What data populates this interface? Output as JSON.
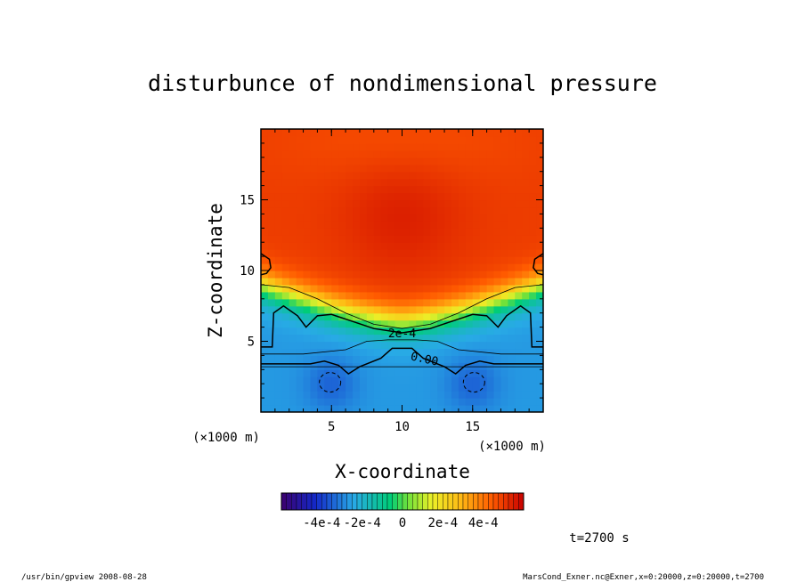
{
  "chart_data": {
    "type": "heatmap",
    "title": "disturbunce of nondimensional pressure",
    "xlabel": "X-coordinate",
    "ylabel": "Z-coordinate",
    "x_unit": "(×1000 m)",
    "y_unit": "(×1000 m)",
    "xlim": [
      0,
      20
    ],
    "ylim": [
      0,
      20
    ],
    "x_ticks": [
      {
        "value": 5,
        "label": "5"
      },
      {
        "value": 10,
        "label": "10"
      },
      {
        "value": 15,
        "label": "15"
      }
    ],
    "y_ticks": [
      {
        "value": 5,
        "label": "5"
      },
      {
        "value": 10,
        "label": "10"
      },
      {
        "value": 15,
        "label": "15"
      }
    ],
    "colorbar": {
      "range": [
        -0.0006,
        0.0006
      ],
      "tick_labels": [
        "-4e-4",
        "-2e-4",
        "0",
        "2e-4",
        "4e-4"
      ],
      "tick_values": [
        -0.0004,
        -0.0002,
        0,
        0.0002,
        0.0004
      ]
    },
    "contours": [
      {
        "level": 0.0002,
        "label": "2e-4"
      },
      {
        "level": 0.0,
        "label": "0.00"
      }
    ],
    "time_label": "t=2700 s"
  },
  "footer": {
    "left": "/usr/bin/gpview   2008-08-28",
    "right": "MarsCond_Exner.nc@Exner,x=0:20000,z=0:20000,t=2700"
  }
}
